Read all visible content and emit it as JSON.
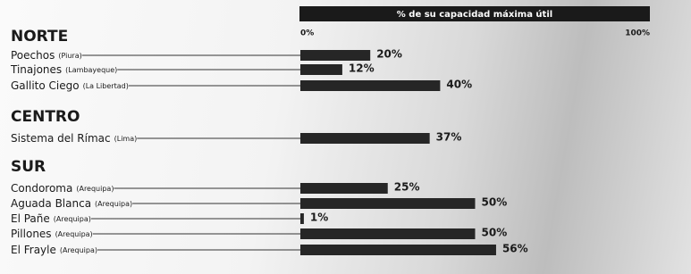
{
  "chart_data": {
    "type": "grouped-bar",
    "title": "% de su capacidad máxima útil",
    "xlim": [
      0,
      100
    ],
    "xticks": [
      {
        "value": 0,
        "label": "0%"
      },
      {
        "value": 100,
        "label": "100%"
      }
    ],
    "color": "#262626",
    "groups": [
      {
        "name": "NORTE",
        "categories": [
          "Poechos",
          "Tinajones",
          "Gallito Ciego"
        ],
        "locations": [
          "(Piura)",
          "(Lambayeque)",
          "(La Libertad)"
        ],
        "values": [
          20,
          12,
          40
        ],
        "value_labels": [
          "20%",
          "12%",
          "40%"
        ]
      },
      {
        "name": "CENTRO",
        "categories": [
          "Sistema del Rímac"
        ],
        "locations": [
          "(Lima)"
        ],
        "values": [
          37
        ],
        "value_labels": [
          "37%"
        ]
      },
      {
        "name": "SUR",
        "categories": [
          "Condoroma",
          "Aguada Blanca",
          "El Pañe",
          "Pillones",
          "El Frayle"
        ],
        "locations": [
          "(Arequipa)",
          "(Arequipa)",
          "(Arequipa)",
          "(Arequipa)",
          "(Arequipa)"
        ],
        "values": [
          25,
          50,
          1,
          50,
          56
        ],
        "value_labels": [
          "25%",
          "50%",
          "1%",
          "50%",
          "56%"
        ]
      }
    ]
  }
}
